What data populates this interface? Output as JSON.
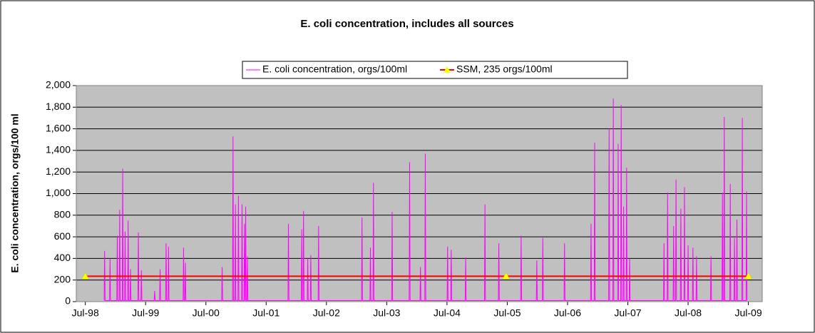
{
  "chart_data": {
    "type": "line",
    "title": "E. coli concentration, includes all sources",
    "y_label": "E. coli concentration, orgs/100 ml",
    "xlim": [
      1998.35,
      2009.73
    ],
    "xticks": [
      {
        "value": 1998.5,
        "label": "Jul-98"
      },
      {
        "value": 1999.5,
        "label": "Jul-99"
      },
      {
        "value": 2000.5,
        "label": "Jul-00"
      },
      {
        "value": 2001.5,
        "label": "Jul-01"
      },
      {
        "value": 2002.5,
        "label": "Jul-02"
      },
      {
        "value": 2003.5,
        "label": "Jul-03"
      },
      {
        "value": 2004.5,
        "label": "Jul-04"
      },
      {
        "value": 2005.5,
        "label": "Jul-05"
      },
      {
        "value": 2006.5,
        "label": "Jul-06"
      },
      {
        "value": 2007.5,
        "label": "Jul-07"
      },
      {
        "value": 2008.5,
        "label": "Jul-08"
      },
      {
        "value": 2009.5,
        "label": "Jul-09"
      }
    ],
    "ylim": [
      0,
      2000
    ],
    "yticks": [
      0,
      200,
      400,
      600,
      800,
      {
        "value": 1000,
        "label": "1,000"
      },
      {
        "value": 1200,
        "label": "1,200"
      },
      {
        "value": 1400,
        "label": "1,400"
      },
      {
        "value": 1600,
        "label": "1,600"
      },
      {
        "value": 1800,
        "label": "1,800"
      },
      {
        "value": 2000,
        "label": "2,000"
      }
    ],
    "grid": true,
    "legend": "top",
    "series": [
      {
        "name": "E. coli concentration, orgs/100ml",
        "color": "#ff00ff",
        "x": [
          1998.812,
          1998.82,
          1998.828,
          1998.902,
          1998.91,
          1998.918,
          1999.022,
          1999.03,
          1999.038,
          1999.062,
          1999.07,
          1999.078,
          1999.112,
          1999.12,
          1999.128,
          1999.152,
          1999.16,
          1999.168,
          1999.202,
          1999.21,
          1999.218,
          1999.242,
          1999.25,
          1999.258,
          1999.372,
          1999.38,
          1999.388,
          1999.422,
          1999.43,
          1999.438,
          1999.642,
          1999.65,
          1999.658,
          1999.732,
          1999.74,
          1999.748,
          1999.832,
          1999.84,
          1999.848,
          1999.872,
          1999.88,
          1999.888,
          2000.122,
          2000.13,
          2000.138,
          2000.152,
          2000.16,
          2000.168,
          2000.762,
          2000.77,
          2000.778,
          2000.942,
          2000.95,
          2000.958,
          2000.982,
          2000.99,
          2000.998,
          2001.032,
          2001.04,
          2001.048,
          2001.092,
          2001.1,
          2001.108,
          2001.132,
          2001.14,
          2001.148,
          2001.152,
          2001.16,
          2001.168,
          2001.182,
          2001.19,
          2001.198,
          2001.862,
          2001.87,
          2001.878,
          2002.082,
          2002.09,
          2002.098,
          2002.112,
          2002.12,
          2002.128,
          2002.182,
          2002.19,
          2002.198,
          2002.232,
          2002.24,
          2002.248,
          2002.362,
          2002.37,
          2002.378,
          2003.082,
          2003.09,
          2003.098,
          2003.222,
          2003.23,
          2003.238,
          2003.272,
          2003.28,
          2003.288,
          2003.582,
          2003.59,
          2003.598,
          2003.872,
          2003.88,
          2003.888,
          2004.052,
          2004.06,
          2004.068,
          2004.132,
          2004.14,
          2004.148,
          2004.502,
          2004.51,
          2004.518,
          2004.562,
          2004.57,
          2004.578,
          2004.802,
          2004.81,
          2004.818,
          2005.122,
          2005.13,
          2005.138,
          2005.352,
          2005.36,
          2005.368,
          2005.722,
          2005.73,
          2005.738,
          2005.982,
          2005.99,
          2005.998,
          2006.082,
          2006.09,
          2006.098,
          2006.442,
          2006.45,
          2006.458,
          2006.882,
          2006.89,
          2006.898,
          2006.942,
          2006.95,
          2006.958,
          2007.182,
          2007.19,
          2007.198,
          2007.252,
          2007.26,
          2007.268,
          2007.332,
          2007.34,
          2007.348,
          2007.382,
          2007.39,
          2007.398,
          2007.422,
          2007.43,
          2007.438,
          2007.472,
          2007.48,
          2007.488,
          2007.522,
          2007.53,
          2007.538,
          2008.092,
          2008.1,
          2008.108,
          2008.152,
          2008.16,
          2008.168,
          2008.252,
          2008.26,
          2008.268,
          2008.292,
          2008.3,
          2008.308,
          2008.372,
          2008.38,
          2008.388,
          2008.432,
          2008.44,
          2008.448,
          2008.492,
          2008.5,
          2008.508,
          2008.572,
          2008.58,
          2008.588,
          2008.632,
          2008.64,
          2008.648,
          2008.872,
          2008.88,
          2008.888,
          2009.062,
          2009.07,
          2009.078,
          2009.092,
          2009.1,
          2009.108,
          2009.192,
          2009.2,
          2009.208,
          2009.262,
          2009.27,
          2009.278,
          2009.302,
          2009.31,
          2009.318,
          2009.392,
          2009.4,
          2009.408,
          2009.462,
          2009.47,
          2009.478
        ],
        "values": [
          10,
          470,
          10,
          10,
          400,
          10,
          10,
          610,
          10,
          10,
          850,
          10,
          10,
          1230,
          10,
          10,
          650,
          10,
          10,
          750,
          10,
          10,
          300,
          10,
          10,
          640,
          10,
          10,
          290,
          10,
          10,
          100,
          10,
          10,
          300,
          10,
          10,
          540,
          10,
          10,
          510,
          10,
          10,
          500,
          10,
          10,
          360,
          10,
          10,
          320,
          10,
          10,
          1530,
          10,
          10,
          900,
          10,
          10,
          980,
          10,
          10,
          900,
          10,
          10,
          720,
          10,
          10,
          880,
          10,
          10,
          420,
          10,
          10,
          720,
          10,
          10,
          670,
          10,
          10,
          840,
          10,
          10,
          400,
          10,
          10,
          430,
          10,
          10,
          700,
          10,
          10,
          780,
          10,
          10,
          500,
          10,
          10,
          1100,
          10,
          10,
          830,
          10,
          10,
          1290,
          10,
          10,
          320,
          10,
          10,
          1370,
          10,
          10,
          510,
          10,
          10,
          480,
          10,
          10,
          410,
          10,
          10,
          900,
          10,
          10,
          540,
          10,
          10,
          610,
          10,
          10,
          380,
          10,
          10,
          590,
          10,
          10,
          540,
          10,
          10,
          720,
          10,
          10,
          1470,
          10,
          10,
          1600,
          10,
          10,
          1880,
          10,
          10,
          1460,
          10,
          10,
          1820,
          10,
          10,
          880,
          10,
          10,
          1240,
          10,
          10,
          400,
          10,
          10,
          540,
          10,
          10,
          1010,
          10,
          10,
          700,
          10,
          10,
          1130,
          10,
          10,
          860,
          10,
          10,
          1060,
          10,
          10,
          520,
          10,
          10,
          500,
          10,
          10,
          420,
          10,
          10,
          420,
          10,
          10,
          1010,
          10,
          10,
          1710,
          10,
          10,
          1090,
          10,
          10,
          590,
          10,
          10,
          760,
          10,
          10,
          1700,
          10,
          10,
          1020,
          10
        ]
      },
      {
        "name": "SSM, 235 orgs/100ml",
        "color": "#ff0000",
        "marker_color": "#ffff00",
        "x": [
          1998.5,
          2005.48,
          2009.5
        ],
        "values": [
          235,
          235,
          235
        ]
      }
    ]
  }
}
